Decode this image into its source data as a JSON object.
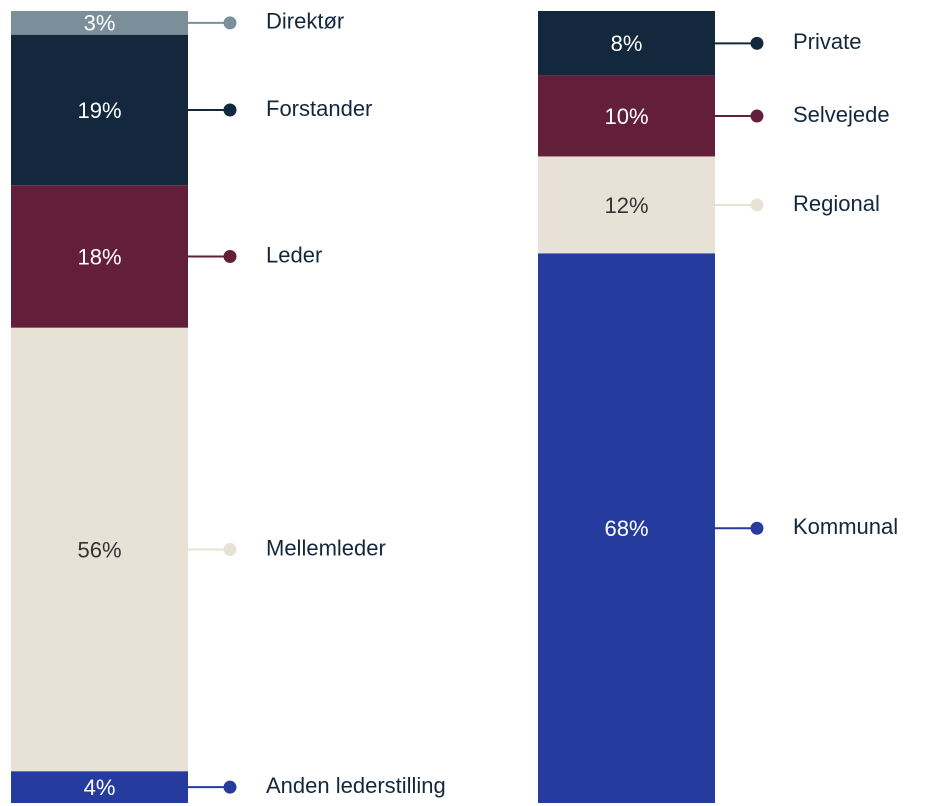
{
  "chart_data": [
    {
      "type": "stacked_bar",
      "series": [
        {
          "name": "Direktør",
          "color": "#7a8f99",
          "values": [
            3
          ],
          "value_labels": [
            "3%"
          ]
        },
        {
          "name": "Forstander",
          "color": "#13283d",
          "values": [
            19
          ],
          "value_labels": [
            "19%"
          ]
        },
        {
          "name": "Leder",
          "color": "#631e3a",
          "values": [
            18
          ],
          "value_labels": [
            "18%"
          ]
        },
        {
          "name": "Mellemleder",
          "color": "#e8e1d6",
          "values": [
            56
          ],
          "value_labels": [
            "56%"
          ]
        },
        {
          "name": "Anden lederstilling",
          "color": "#253c9e",
          "values": [
            4
          ],
          "value_labels": [
            "4%"
          ]
        }
      ]
    },
    {
      "type": "stacked_bar",
      "series": [
        {
          "name": "Private",
          "color": "#13283d",
          "values": [
            8
          ],
          "value_labels": [
            "8%"
          ]
        },
        {
          "name": "Selvejede",
          "color": "#631e3a",
          "values": [
            10
          ],
          "value_labels": [
            "10%"
          ]
        },
        {
          "name": "Regional",
          "color": "#e8e1d6",
          "values": [
            12
          ],
          "value_labels": [
            "12%"
          ]
        },
        {
          "name": "Kommunal",
          "color": "#253c9e",
          "values": [
            68
          ],
          "value_labels": [
            "68%"
          ]
        }
      ]
    }
  ]
}
